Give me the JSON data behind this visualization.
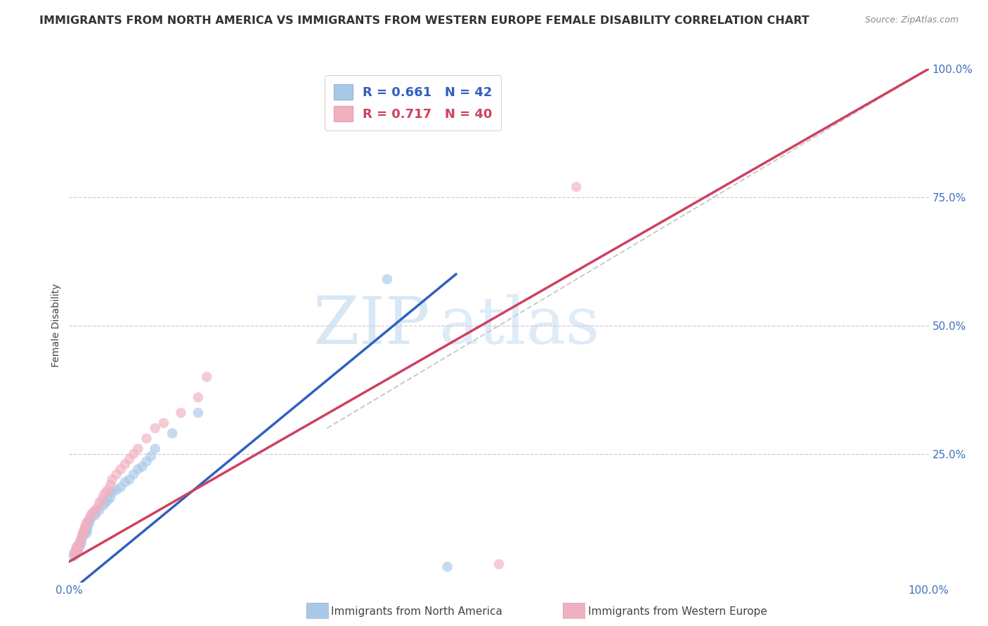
{
  "title": "IMMIGRANTS FROM NORTH AMERICA VS IMMIGRANTS FROM WESTERN EUROPE FEMALE DISABILITY CORRELATION CHART",
  "source": "Source: ZipAtlas.com",
  "ylabel": "Female Disability",
  "xlim": [
    0,
    1
  ],
  "ylim": [
    0,
    1
  ],
  "xticks": [
    0,
    0.25,
    0.5,
    0.75,
    1.0
  ],
  "yticks": [
    0,
    0.25,
    0.5,
    0.75,
    1.0
  ],
  "xticklabels": [
    "0.0%",
    "",
    "",
    "",
    "100.0%"
  ],
  "yticklabels_right": [
    "",
    "25.0%",
    "50.0%",
    "75.0%",
    "100.0%"
  ],
  "legend_labels": [
    "Immigrants from North America",
    "Immigrants from Western Europe"
  ],
  "blue_color": "#A8C8E8",
  "pink_color": "#F0B0C0",
  "blue_line_color": "#3060C0",
  "pink_line_color": "#D04060",
  "R_blue": 0.661,
  "N_blue": 42,
  "R_pink": 0.717,
  "N_pink": 40,
  "blue_scatter_x": [
    0.005,
    0.007,
    0.008,
    0.009,
    0.01,
    0.011,
    0.012,
    0.013,
    0.014,
    0.015,
    0.016,
    0.017,
    0.018,
    0.019,
    0.02,
    0.021,
    0.022,
    0.023,
    0.024,
    0.025,
    0.03,
    0.031,
    0.035,
    0.04,
    0.042,
    0.045,
    0.048,
    0.05,
    0.055,
    0.06,
    0.065,
    0.07,
    0.075,
    0.08,
    0.085,
    0.09,
    0.095,
    0.1,
    0.12,
    0.15,
    0.37,
    0.44
  ],
  "blue_scatter_y": [
    0.05,
    0.055,
    0.06,
    0.065,
    0.06,
    0.065,
    0.07,
    0.08,
    0.075,
    0.085,
    0.09,
    0.095,
    0.1,
    0.105,
    0.095,
    0.1,
    0.11,
    0.115,
    0.12,
    0.125,
    0.13,
    0.135,
    0.14,
    0.15,
    0.155,
    0.16,
    0.165,
    0.175,
    0.18,
    0.185,
    0.195,
    0.2,
    0.21,
    0.22,
    0.225,
    0.235,
    0.245,
    0.26,
    0.29,
    0.33,
    0.59,
    0.03
  ],
  "pink_scatter_x": [
    0.005,
    0.007,
    0.008,
    0.009,
    0.01,
    0.011,
    0.012,
    0.013,
    0.015,
    0.016,
    0.017,
    0.018,
    0.019,
    0.02,
    0.022,
    0.025,
    0.027,
    0.03,
    0.033,
    0.035,
    0.038,
    0.04,
    0.043,
    0.045,
    0.048,
    0.05,
    0.055,
    0.06,
    0.065,
    0.07,
    0.075,
    0.08,
    0.09,
    0.1,
    0.11,
    0.13,
    0.15,
    0.16,
    0.59,
    0.5
  ],
  "pink_scatter_y": [
    0.055,
    0.06,
    0.065,
    0.07,
    0.06,
    0.07,
    0.075,
    0.08,
    0.09,
    0.095,
    0.1,
    0.105,
    0.11,
    0.115,
    0.12,
    0.13,
    0.135,
    0.14,
    0.145,
    0.155,
    0.16,
    0.17,
    0.175,
    0.18,
    0.19,
    0.2,
    0.21,
    0.22,
    0.23,
    0.24,
    0.25,
    0.26,
    0.28,
    0.3,
    0.31,
    0.33,
    0.36,
    0.4,
    0.77,
    0.035
  ],
  "blue_line_x": [
    0.0,
    0.45
  ],
  "blue_line_y": [
    -0.02,
    0.6
  ],
  "pink_line_x": [
    0.0,
    1.0
  ],
  "pink_line_y": [
    0.04,
    1.0
  ],
  "ref_line_x": [
    0.3,
    1.0
  ],
  "ref_line_y": [
    0.3,
    1.0
  ],
  "watermark_zip": "ZIP",
  "watermark_atlas": "atlas",
  "background_color": "#FFFFFF",
  "grid_color": "#D8C8D8",
  "title_fontsize": 11.5,
  "axis_label_fontsize": 10,
  "tick_fontsize": 11,
  "legend_fontsize": 13,
  "scatter_size": 110,
  "scatter_alpha": 0.65
}
